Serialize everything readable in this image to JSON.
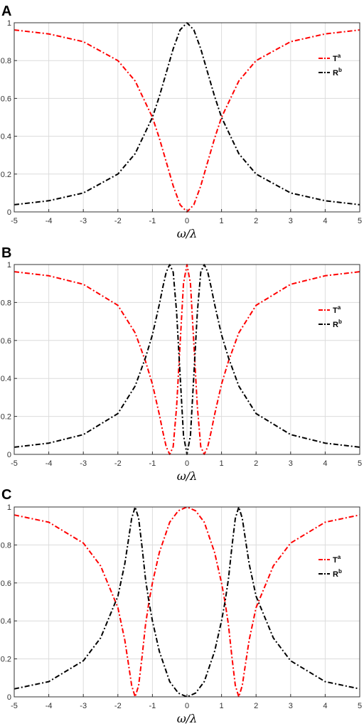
{
  "chart_data": [
    {
      "type": "line",
      "panel_label": "A",
      "xlabel": "ω/λ",
      "ylabel": "",
      "xlim": [
        -5,
        5
      ],
      "ylim": [
        0,
        1
      ],
      "xticks": [
        "-5",
        "-4",
        "-3",
        "-2",
        "-1",
        "0",
        "1",
        "2",
        "3",
        "4",
        "5"
      ],
      "yticks": [
        "0",
        "0.2",
        "0.4",
        "0.6",
        "0.8",
        "1"
      ],
      "grid": true,
      "legend_position": "top-right",
      "series": [
        {
          "name": "T",
          "name_sup": "a",
          "color": "#ff0000",
          "style": "dash-dot",
          "x": [
            -5,
            -4,
            -3,
            -2,
            -1.5,
            -1,
            -0.8,
            -0.6,
            -0.4,
            -0.2,
            0,
            0.2,
            0.4,
            0.6,
            0.8,
            1,
            1.5,
            2,
            3,
            4,
            5
          ],
          "y": [
            0.962,
            0.941,
            0.9,
            0.8,
            0.692,
            0.5,
            0.39,
            0.265,
            0.138,
            0.038,
            0,
            0.038,
            0.138,
            0.265,
            0.39,
            0.5,
            0.692,
            0.8,
            0.9,
            0.941,
            0.962
          ]
        },
        {
          "name": "R",
          "name_sup": "b",
          "color": "#000000",
          "style": "dash-dot",
          "x": [
            -5,
            -4,
            -3,
            -2,
            -1.5,
            -1,
            -0.8,
            -0.6,
            -0.4,
            -0.2,
            0,
            0.2,
            0.4,
            0.6,
            0.8,
            1,
            1.5,
            2,
            3,
            4,
            5
          ],
          "y": [
            0.038,
            0.059,
            0.1,
            0.2,
            0.308,
            0.5,
            0.61,
            0.735,
            0.862,
            0.962,
            1,
            0.962,
            0.862,
            0.735,
            0.61,
            0.5,
            0.308,
            0.2,
            0.1,
            0.059,
            0.038
          ]
        }
      ]
    },
    {
      "type": "line",
      "panel_label": "B",
      "xlabel": "ω/λ",
      "ylabel": "",
      "xlim": [
        -5,
        5
      ],
      "ylim": [
        0,
        1
      ],
      "xticks": [
        "-5",
        "-4",
        "-3",
        "-2",
        "-1",
        "0",
        "1",
        "2",
        "3",
        "4",
        "5"
      ],
      "yticks": [
        "0",
        "0.2",
        "0.4",
        "0.6",
        "0.8",
        "1"
      ],
      "grid": true,
      "legend_position": "top-right",
      "series": [
        {
          "name": "T",
          "name_sup": "a",
          "color": "#ff0000",
          "style": "dash-dot",
          "x": [
            -5,
            -4,
            -3,
            -2,
            -1.5,
            -1.2,
            -1,
            -0.8,
            -0.7,
            -0.6,
            -0.5,
            -0.4,
            -0.3,
            -0.2,
            -0.1,
            0,
            0.1,
            0.2,
            0.3,
            0.4,
            0.5,
            0.6,
            0.7,
            0.8,
            1,
            1.2,
            1.5,
            2,
            3,
            4,
            5
          ],
          "y": [
            0.962,
            0.941,
            0.896,
            0.785,
            0.64,
            0.49,
            0.37,
            0.21,
            0.12,
            0.04,
            0,
            0.04,
            0.25,
            0.58,
            0.9,
            1,
            0.9,
            0.58,
            0.25,
            0.04,
            0,
            0.04,
            0.12,
            0.21,
            0.37,
            0.49,
            0.64,
            0.785,
            0.896,
            0.941,
            0.962
          ]
        },
        {
          "name": "R",
          "name_sup": "b",
          "color": "#000000",
          "style": "dash-dot",
          "x": [
            -5,
            -4,
            -3,
            -2,
            -1.5,
            -1.2,
            -1,
            -0.8,
            -0.7,
            -0.6,
            -0.5,
            -0.4,
            -0.3,
            -0.2,
            -0.1,
            0,
            0.1,
            0.2,
            0.3,
            0.4,
            0.5,
            0.6,
            0.7,
            0.8,
            1,
            1.2,
            1.5,
            2,
            3,
            4,
            5
          ],
          "y": [
            0.038,
            0.059,
            0.104,
            0.215,
            0.36,
            0.51,
            0.63,
            0.79,
            0.88,
            0.96,
            1,
            0.96,
            0.75,
            0.42,
            0.1,
            0,
            0.1,
            0.42,
            0.75,
            0.96,
            1,
            0.96,
            0.88,
            0.79,
            0.63,
            0.51,
            0.36,
            0.215,
            0.104,
            0.059,
            0.038
          ]
        }
      ]
    },
    {
      "type": "line",
      "panel_label": "C",
      "xlabel": "ω/λ",
      "ylabel": "",
      "xlim": [
        -5,
        5
      ],
      "ylim": [
        0,
        1
      ],
      "xticks": [
        "-5",
        "-4",
        "-3",
        "-2",
        "-1",
        "0",
        "1",
        "2",
        "3",
        "4",
        "5"
      ],
      "yticks": [
        "0",
        "0.2",
        "0.4",
        "0.6",
        "0.8",
        "1"
      ],
      "grid": true,
      "legend_position": "right",
      "series": [
        {
          "name": "T",
          "name_sup": "a",
          "color": "#ff0000",
          "style": "dash-dot",
          "x": [
            -5,
            -4,
            -3,
            -2.5,
            -2,
            -1.8,
            -1.7,
            -1.6,
            -1.5,
            -1.4,
            -1.3,
            -1.2,
            -1.1,
            -1,
            -0.8,
            -0.5,
            -0.25,
            0,
            0.25,
            0.5,
            0.8,
            1,
            1.1,
            1.2,
            1.3,
            1.4,
            1.5,
            1.6,
            1.7,
            1.8,
            2,
            2.5,
            3,
            4,
            5
          ],
          "y": [
            0.958,
            0.92,
            0.81,
            0.69,
            0.47,
            0.3,
            0.18,
            0.06,
            0,
            0.06,
            0.21,
            0.38,
            0.5,
            0.6,
            0.76,
            0.92,
            0.98,
            1,
            0.98,
            0.92,
            0.76,
            0.6,
            0.5,
            0.38,
            0.21,
            0.06,
            0,
            0.06,
            0.18,
            0.3,
            0.47,
            0.69,
            0.81,
            0.92,
            0.958
          ]
        },
        {
          "name": "R",
          "name_sup": "b",
          "color": "#000000",
          "style": "dash-dot",
          "x": [
            -5,
            -4,
            -3,
            -2.5,
            -2,
            -1.8,
            -1.7,
            -1.6,
            -1.5,
            -1.4,
            -1.3,
            -1.2,
            -1.1,
            -1,
            -0.8,
            -0.5,
            -0.25,
            0,
            0.25,
            0.5,
            0.8,
            1,
            1.1,
            1.2,
            1.3,
            1.4,
            1.5,
            1.6,
            1.7,
            1.8,
            2,
            2.5,
            3,
            4,
            5
          ],
          "y": [
            0.042,
            0.08,
            0.19,
            0.31,
            0.53,
            0.7,
            0.82,
            0.94,
            1,
            0.94,
            0.79,
            0.62,
            0.5,
            0.4,
            0.24,
            0.08,
            0.02,
            0,
            0.02,
            0.08,
            0.24,
            0.4,
            0.5,
            0.62,
            0.79,
            0.94,
            1,
            0.94,
            0.82,
            0.7,
            0.53,
            0.31,
            0.19,
            0.08,
            0.042
          ]
        }
      ]
    }
  ]
}
